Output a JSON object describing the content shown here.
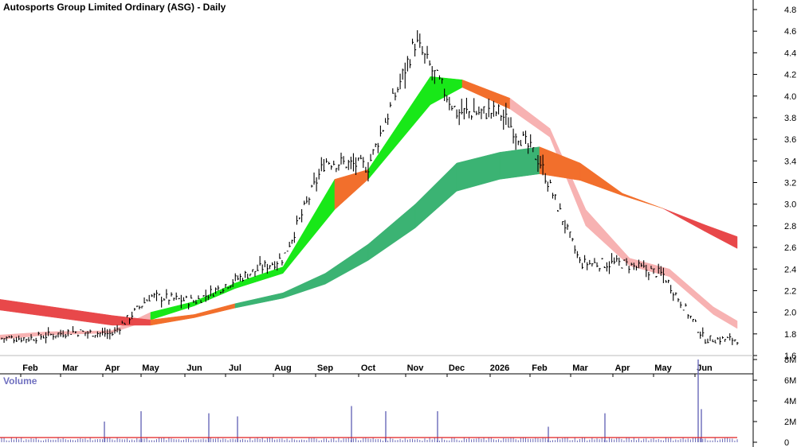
{
  "chart_data": {
    "type": "line",
    "title": "Autosports Group Limited Ordinary (ASG) - Daily",
    "price_axis": {
      "ylim": [
        1.6,
        4.8
      ],
      "ticks": [
        "1.6",
        "1.8",
        "2.0",
        "2.2",
        "2.4",
        "2.6",
        "2.8",
        "3.0",
        "3.2",
        "3.4",
        "3.6",
        "3.8",
        "4.0",
        "4.2",
        "4.4",
        "4.6",
        "4.8"
      ]
    },
    "volume_axis": {
      "label": "Volume",
      "ylim": [
        0,
        8000000
      ],
      "ticks": [
        "0",
        "2M",
        "4M",
        "6M",
        "8M"
      ]
    },
    "months": [
      "Feb",
      "Mar",
      "Apr",
      "May",
      "Jun",
      "Jul",
      "Aug",
      "Sep",
      "Oct",
      "Nov",
      "Dec",
      "2026",
      "Feb",
      "Mar",
      "Apr",
      "May",
      "Jun"
    ],
    "grid": false,
    "price_close_by_month": [
      1.76,
      1.82,
      1.8,
      2.15,
      2.1,
      2.3,
      2.5,
      3.4,
      3.35,
      4.5,
      3.85,
      3.85,
      3.4,
      2.45,
      2.45,
      2.35,
      1.75
    ],
    "ribbons": [
      {
        "id": "short-term-ribbon",
        "x": [
          "Feb",
          "Mar",
          "Apr",
          "May",
          "Jun",
          "Jul",
          "Aug",
          "Sep",
          "Oct",
          "Nov",
          "Dec",
          "2026",
          "Feb",
          "Mar",
          "Apr",
          "May",
          "Jun",
          "end"
        ],
        "upper": [
          1.79,
          1.82,
          1.83,
          2.0,
          2.1,
          2.27,
          2.42,
          3.23,
          3.32,
          4.18,
          4.15,
          3.98,
          3.7,
          2.95,
          2.5,
          2.4,
          2.05,
          1.92
        ],
        "lower": [
          1.75,
          1.79,
          1.81,
          1.93,
          2.06,
          2.22,
          2.36,
          2.95,
          3.23,
          3.92,
          4.08,
          3.88,
          3.62,
          2.8,
          2.43,
          2.33,
          1.98,
          1.85
        ]
      },
      {
        "id": "long-term-ribbon",
        "x": [
          "Jan",
          "Apr",
          "May",
          "Jun",
          "Jul",
          "Aug",
          "Sep",
          "Oct",
          "Nov",
          "Dec",
          "2026",
          "Feb",
          "Mar",
          "Apr",
          "May",
          "Jun",
          "end"
        ],
        "upper": [
          2.12,
          1.97,
          1.93,
          1.98,
          2.08,
          2.18,
          2.36,
          2.63,
          3.0,
          3.38,
          3.48,
          3.53,
          3.38,
          3.1,
          2.96,
          2.81,
          2.7
        ],
        "lower": [
          2.02,
          1.88,
          1.88,
          1.95,
          2.04,
          2.13,
          2.26,
          2.48,
          2.78,
          3.12,
          3.23,
          3.28,
          3.22,
          3.08,
          2.96,
          2.75,
          2.59
        ]
      }
    ],
    "volume_spikes_millions": [
      2.0,
      3.0,
      2.8,
      2.5,
      3.5,
      3.0,
      3.0,
      1.5,
      2.8,
      8.0,
      3.2
    ],
    "colors": {
      "uptrend_short": "#18e818",
      "uptrend_long": "#3bb373",
      "downtrend_short": "#f7b2b2",
      "downtrend_long": "#e8484a",
      "transition": "#f26f2c",
      "volume_bars": "#6a6ab8",
      "volume_avg": "#e02020"
    }
  }
}
